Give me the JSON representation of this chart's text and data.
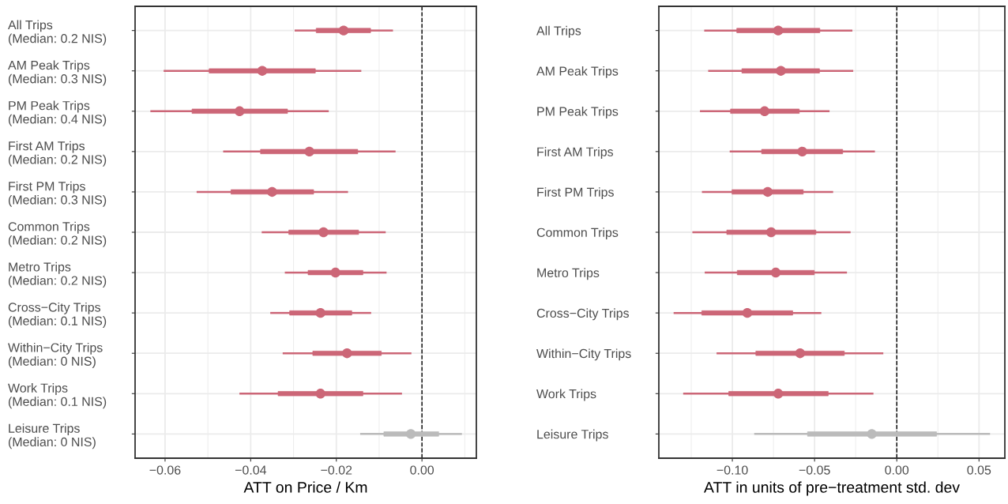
{
  "chart_data": [
    {
      "type": "box",
      "orientation": "horizontal",
      "xlabel": "ATT on Price / Km",
      "categories": [
        "All Trips\n(Median: 0.2 NIS)",
        "AM Peak Trips\n(Median: 0.3 NIS)",
        "PM Peak Trips\n(Median: 0.4 NIS)",
        "First AM Trips\n(Median: 0.2 NIS)",
        "First PM Trips\n(Median: 0.3 NIS)",
        "Common Trips\n(Median: 0.2 NIS)",
        "Metro Trips\n(Median: 0.2 NIS)",
        "Cross−City Trips\n(Median: 0.1 NIS)",
        "Within−City Trips\n(Median: 0 NIS)",
        "Work Trips\n(Median: 0.1 NIS)",
        "Leisure Trips\n(Median: 0 NIS)"
      ],
      "xlim": [
        -0.067,
        0.0127
      ],
      "xticks": [
        {
          "value": -0.06,
          "label": "−0.06"
        },
        {
          "value": -0.04,
          "label": "−0.04"
        },
        {
          "value": -0.02,
          "label": "−0.02"
        },
        {
          "value": 0,
          "label": "0.00"
        }
      ],
      "grid": true,
      "marker": "circle",
      "ref_lines": [
        {
          "axis": "x",
          "value": 0,
          "color": "#000000",
          "line_style": "dashed"
        }
      ],
      "colors": [
        "#cc6677",
        "#cc6677",
        "#cc6677",
        "#cc6677",
        "#cc6677",
        "#cc6677",
        "#cc6677",
        "#cc6677",
        "#cc6677",
        "#cc6677",
        "#bbbbbb"
      ],
      "boxes": [
        {
          "low": -0.0295,
          "q1": -0.0247,
          "median": -0.0183,
          "q3": -0.012,
          "high": -0.007
        },
        {
          "low": -0.0601,
          "q1": -0.0497,
          "median": -0.0373,
          "q3": -0.0249,
          "high": -0.0144
        },
        {
          "low": -0.0632,
          "q1": -0.0537,
          "median": -0.0426,
          "q3": -0.0314,
          "high": -0.022
        },
        {
          "low": -0.0462,
          "q1": -0.0377,
          "median": -0.0263,
          "q3": -0.015,
          "high": -0.0064
        },
        {
          "low": -0.0524,
          "q1": -0.0446,
          "median": -0.035,
          "q3": -0.0253,
          "high": -0.0175
        },
        {
          "low": -0.0372,
          "q1": -0.0311,
          "median": -0.023,
          "q3": -0.0148,
          "high": -0.0087
        },
        {
          "low": -0.0318,
          "q1": -0.0266,
          "median": -0.0202,
          "q3": -0.0138,
          "high": -0.0085
        },
        {
          "low": -0.0352,
          "q1": -0.0309,
          "median": -0.0237,
          "q3": -0.0164,
          "high": -0.0121
        },
        {
          "low": -0.0323,
          "q1": -0.0255,
          "median": -0.0175,
          "q3": -0.0095,
          "high": -0.0027
        },
        {
          "low": -0.0424,
          "q1": -0.0336,
          "median": -0.0237,
          "q3": -0.0138,
          "high": -0.0049
        },
        {
          "low": -0.0142,
          "q1": -0.0089,
          "median": -0.0026,
          "q3": 0.0039,
          "high": 0.0091
        }
      ],
      "series": [
        {
          "type": "scatter",
          "x": [
            "All Trips\n(Median: 0.2 NIS)",
            "AM Peak Trips\n(Median: 0.3 NIS)",
            "PM Peak Trips\n(Median: 0.4 NIS)",
            "First AM Trips\n(Median: 0.2 NIS)",
            "First PM Trips\n(Median: 0.3 NIS)",
            "Common Trips\n(Median: 0.2 NIS)",
            "Metro Trips\n(Median: 0.2 NIS)",
            "Cross−City Trips\n(Median: 0.1 NIS)",
            "Within−City Trips\n(Median: 0 NIS)",
            "Work Trips\n(Median: 0.1 NIS)",
            "Leisure Trips\n(Median: 0 NIS)"
          ],
          "colors": [
            "#cc6677",
            "#cc6677",
            "#cc6677",
            "#cc6677",
            "#cc6677",
            "#cc6677",
            "#cc6677",
            "#cc6677",
            "#cc6677",
            "#cc6677",
            "#bbbbbb"
          ],
          "values": [
            -0.0183,
            -0.0373,
            -0.0426,
            -0.0263,
            -0.035,
            -0.023,
            -0.0202,
            -0.0237,
            -0.0175,
            -0.0237,
            -0.0026
          ]
        }
      ]
    },
    {
      "type": "box",
      "orientation": "horizontal",
      "xlabel": "ATT in units of pre−treatment std. dev",
      "categories": [
        "All Trips",
        "AM Peak Trips",
        "PM Peak Trips",
        "First AM Trips",
        "First PM Trips",
        "Common Trips",
        "Metro Trips",
        "Cross−City Trips",
        "Within−City Trips",
        "Work Trips",
        "Leisure Trips"
      ],
      "xlim": [
        -0.1447,
        0.0657
      ],
      "xticks": [
        {
          "value": -0.1,
          "label": "−0.10"
        },
        {
          "value": -0.05,
          "label": "−0.05"
        },
        {
          "value": 0,
          "label": "0.00"
        },
        {
          "value": 0.05,
          "label": "0.05"
        }
      ],
      "grid": true,
      "marker": "circle",
      "ref_lines": [
        {
          "axis": "x",
          "value": 0,
          "color": "#000000",
          "line_style": "dashed"
        }
      ],
      "colors": [
        "#cc6677",
        "#cc6677",
        "#cc6677",
        "#cc6677",
        "#cc6677",
        "#cc6677",
        "#cc6677",
        "#cc6677",
        "#cc6677",
        "#cc6677",
        "#bbbbbb"
      ],
      "boxes": [
        {
          "low": -0.1165,
          "q1": -0.0973,
          "median": -0.0721,
          "q3": -0.0468,
          "high": -0.0276
        },
        {
          "low": -0.1141,
          "q1": -0.0942,
          "median": -0.0705,
          "q3": -0.047,
          "high": -0.0271
        },
        {
          "low": -0.1191,
          "q1": -0.1011,
          "median": -0.0804,
          "q3": -0.0593,
          "high": -0.0415
        },
        {
          "low": -0.101,
          "q1": -0.0822,
          "median": -0.0575,
          "q3": -0.0329,
          "high": -0.0139
        },
        {
          "low": -0.1179,
          "q1": -0.1002,
          "median": -0.0785,
          "q3": -0.0569,
          "high": -0.0393
        },
        {
          "low": -0.1237,
          "q1": -0.1034,
          "median": -0.0764,
          "q3": -0.0492,
          "high": -0.0287
        },
        {
          "low": -0.1162,
          "q1": -0.097,
          "median": -0.0736,
          "q3": -0.0502,
          "high": -0.0309
        },
        {
          "low": -0.1351,
          "q1": -0.1186,
          "median": -0.0909,
          "q3": -0.0633,
          "high": -0.0465
        },
        {
          "low": -0.109,
          "q1": -0.0857,
          "median": -0.0588,
          "q3": -0.0319,
          "high": -0.0088
        },
        {
          "low": -0.1293,
          "q1": -0.1022,
          "median": -0.0721,
          "q3": -0.0417,
          "high": -0.0148
        },
        {
          "low": -0.0861,
          "q1": -0.0543,
          "median": -0.0152,
          "q3": 0.0242,
          "high": 0.0561
        }
      ],
      "series": [
        {
          "type": "scatter",
          "x": [
            "All Trips",
            "AM Peak Trips",
            "PM Peak Trips",
            "First AM Trips",
            "First PM Trips",
            "Common Trips",
            "Metro Trips",
            "Cross−City Trips",
            "Within−City Trips",
            "Work Trips",
            "Leisure Trips"
          ],
          "colors": [
            "#cc6677",
            "#cc6677",
            "#cc6677",
            "#cc6677",
            "#cc6677",
            "#cc6677",
            "#cc6677",
            "#cc6677",
            "#cc6677",
            "#cc6677",
            "#bbbbbb"
          ],
          "values": [
            -0.0721,
            -0.0705,
            -0.0804,
            -0.0575,
            -0.0785,
            -0.0764,
            -0.0736,
            -0.0909,
            -0.0588,
            -0.0721,
            -0.0152
          ]
        }
      ]
    }
  ]
}
